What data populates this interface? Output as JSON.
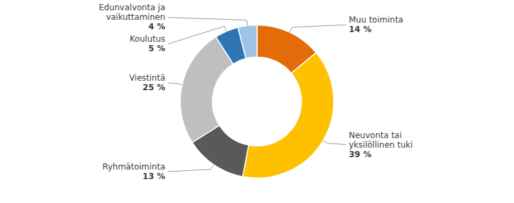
{
  "chart_data": {
    "type": "donut",
    "categories": [
      "Muu toiminta",
      "Neuvonta tai\nyksilöllinen tuki",
      "Ryhmätoiminta",
      "Viestintä",
      "Koulutus",
      "Edunvalvonta ja\nvaikuttaminen"
    ],
    "values": [
      14,
      39,
      13,
      25,
      5,
      4
    ],
    "value_labels": [
      "14 %",
      "39 %",
      "13 %",
      "25 %",
      "5 %",
      "4 %"
    ],
    "colors": [
      "#E36C09",
      "#FFC000",
      "#595959",
      "#BFBFBF",
      "#2E75B6",
      "#9DC3E6"
    ]
  }
}
